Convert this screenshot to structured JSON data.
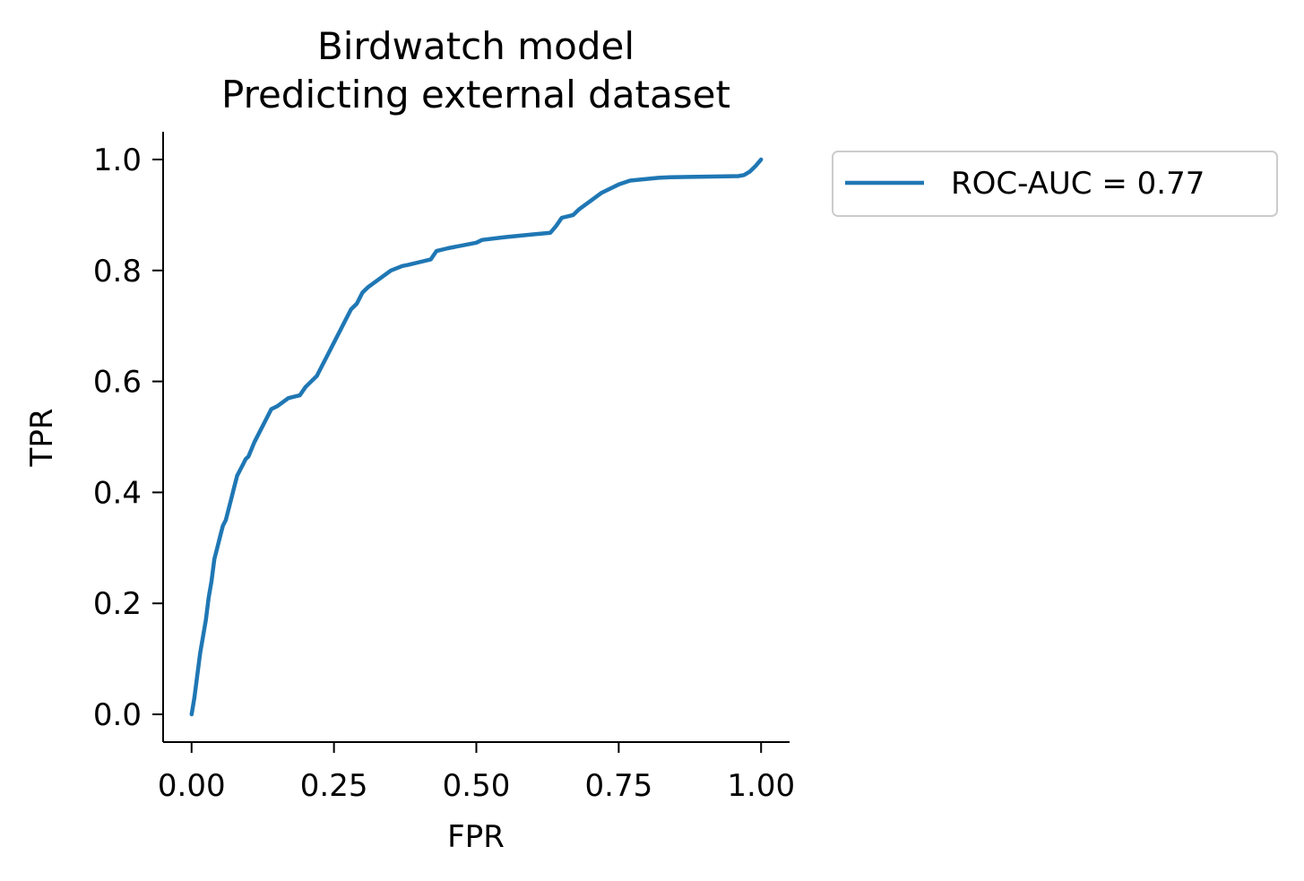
{
  "chart_data": {
    "type": "line",
    "title_lines": [
      "Birdwatch model",
      "Predicting external dataset"
    ],
    "xlabel": "FPR",
    "ylabel": "TPR",
    "xlim": [
      -0.05,
      1.05
    ],
    "ylim": [
      -0.05,
      1.05
    ],
    "x_ticks": [
      0.0,
      0.25,
      0.5,
      0.75,
      1.0
    ],
    "x_tick_labels": [
      "0.00",
      "0.25",
      "0.50",
      "0.75",
      "1.00"
    ],
    "y_ticks": [
      0.0,
      0.2,
      0.4,
      0.6,
      0.8,
      1.0
    ],
    "y_tick_labels": [
      "0.0",
      "0.2",
      "0.4",
      "0.6",
      "0.8",
      "1.0"
    ],
    "grid": false,
    "legend_position": "outside-right-top",
    "series": [
      {
        "name": "ROC-AUC = 0.77",
        "color": "#1f77b4",
        "x": [
          0.0,
          0.005,
          0.01,
          0.015,
          0.02,
          0.025,
          0.03,
          0.035,
          0.04,
          0.045,
          0.05,
          0.055,
          0.06,
          0.065,
          0.07,
          0.075,
          0.08,
          0.085,
          0.09,
          0.095,
          0.1,
          0.11,
          0.12,
          0.13,
          0.14,
          0.15,
          0.17,
          0.19,
          0.2,
          0.22,
          0.23,
          0.24,
          0.25,
          0.26,
          0.27,
          0.28,
          0.29,
          0.3,
          0.31,
          0.33,
          0.35,
          0.37,
          0.38,
          0.4,
          0.42,
          0.43,
          0.45,
          0.5,
          0.51,
          0.55,
          0.6,
          0.63,
          0.64,
          0.65,
          0.67,
          0.68,
          0.7,
          0.72,
          0.75,
          0.77,
          0.8,
          0.82,
          0.84,
          0.9,
          0.96,
          0.97,
          0.98,
          0.99,
          1.0
        ],
        "y": [
          0.0,
          0.03,
          0.07,
          0.11,
          0.14,
          0.17,
          0.21,
          0.24,
          0.28,
          0.3,
          0.32,
          0.34,
          0.35,
          0.37,
          0.39,
          0.41,
          0.43,
          0.44,
          0.45,
          0.46,
          0.465,
          0.49,
          0.51,
          0.53,
          0.55,
          0.555,
          0.57,
          0.575,
          0.59,
          0.61,
          0.63,
          0.65,
          0.67,
          0.69,
          0.71,
          0.73,
          0.74,
          0.76,
          0.77,
          0.785,
          0.8,
          0.808,
          0.81,
          0.815,
          0.82,
          0.835,
          0.84,
          0.85,
          0.855,
          0.86,
          0.865,
          0.868,
          0.88,
          0.895,
          0.9,
          0.91,
          0.925,
          0.94,
          0.955,
          0.962,
          0.965,
          0.967,
          0.968,
          0.969,
          0.97,
          0.972,
          0.978,
          0.988,
          1.0
        ]
      }
    ]
  }
}
